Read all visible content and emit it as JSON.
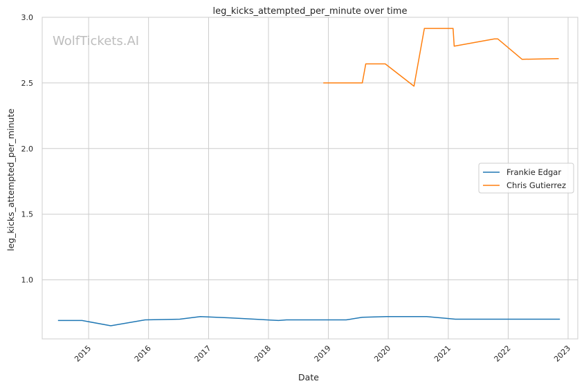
{
  "chart_data": {
    "type": "line",
    "title": "leg_kicks_attempted_per_minute over time",
    "xlabel": "Date",
    "ylabel": "leg_kicks_attempted_per_minute",
    "watermark": "WolfTickets.AI",
    "xlim": [
      "2014-03-24",
      "2023-03-01"
    ],
    "ylim": [
      0.55,
      3.0
    ],
    "x_ticks": [
      "2015",
      "2016",
      "2017",
      "2018",
      "2019",
      "2020",
      "2021",
      "2022",
      "2023"
    ],
    "y_ticks": [
      "1.0",
      "1.5",
      "2.0",
      "2.5",
      "3.0"
    ],
    "grid": true,
    "legend_position": "center-right",
    "series": [
      {
        "name": "Frankie Edgar",
        "color": "#1f77b4",
        "x": [
          "2014-06-28",
          "2014-11-22",
          "2015-05-16",
          "2015-12-11",
          "2016-07-09",
          "2016-11-12",
          "2017-05-13",
          "2018-03-03",
          "2018-04-21",
          "2019-04-20",
          "2019-07-27",
          "2019-12-21",
          "2020-08-22",
          "2021-02-13",
          "2021-09-25",
          "2021-11-06",
          "2022-11-12"
        ],
        "y": [
          0.69,
          0.69,
          0.65,
          0.695,
          0.7,
          0.72,
          0.71,
          0.69,
          0.695,
          0.695,
          0.715,
          0.72,
          0.72,
          0.7,
          0.7,
          0.7,
          0.7
        ]
      },
      {
        "name": "Chris Gutierrez",
        "color": "#ff7f0e",
        "x": [
          "2018-12-01",
          "2019-07-27",
          "2019-08-17",
          "2019-12-14",
          "2020-06-06",
          "2020-08-08",
          "2021-01-30",
          "2021-02-06",
          "2021-10-09",
          "2021-10-30",
          "2022-03-26",
          "2022-11-05"
        ],
        "y": [
          2.5,
          2.5,
          2.645,
          2.645,
          2.475,
          2.915,
          2.915,
          2.78,
          2.835,
          2.835,
          2.68,
          2.685
        ]
      }
    ]
  }
}
